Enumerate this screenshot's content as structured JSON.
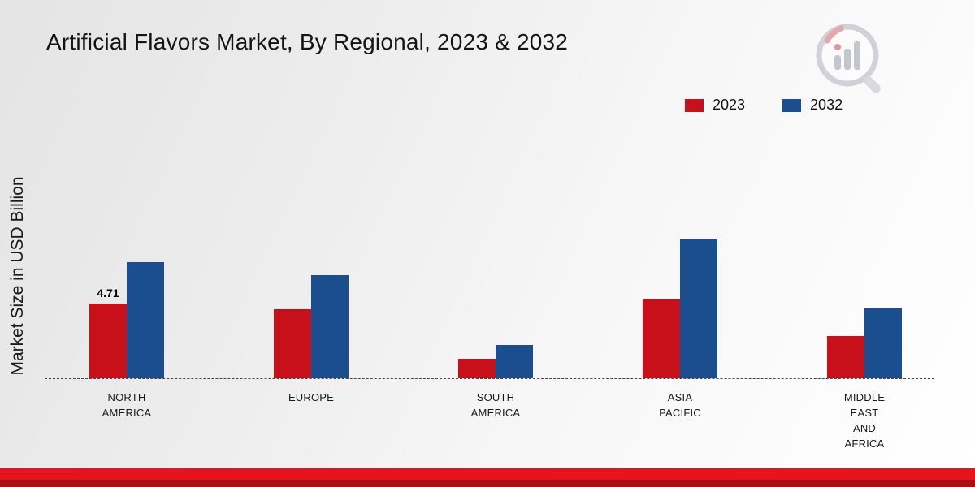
{
  "title": "Artificial Flavors Market, By Regional, 2023 & 2032",
  "ylabel": "Market Size in USD Billion",
  "legend": {
    "items": [
      {
        "label": "2023",
        "color": "#c8101a"
      },
      {
        "label": "2032",
        "color": "#1b4e8e"
      }
    ]
  },
  "chart_data": {
    "type": "bar",
    "title": "Artificial Flavors Market, By Regional, 2023 & 2032",
    "xlabel": "",
    "ylabel": "Market Size in USD Billion",
    "ylim": [
      0,
      10
    ],
    "grid": false,
    "legend_position": "top-right",
    "categories": [
      "NORTH AMERICA",
      "EUROPE",
      "SOUTH AMERICA",
      "ASIA PACIFIC",
      "MIDDLE EAST AND AFRICA"
    ],
    "series": [
      {
        "name": "2023",
        "color": "#c8101a",
        "values": [
          4.71,
          4.35,
          1.2,
          5.0,
          2.65
        ]
      },
      {
        "name": "2032",
        "color": "#1b4e8e",
        "values": [
          7.3,
          6.5,
          2.1,
          8.75,
          4.4
        ]
      }
    ],
    "annotations": [
      {
        "series_index": 0,
        "category_index": 0,
        "text": "4.71"
      }
    ]
  },
  "category_label_lines": [
    [
      "NORTH",
      "AMERICA"
    ],
    [
      "EUROPE"
    ],
    [
      "SOUTH",
      "AMERICA"
    ],
    [
      "ASIA",
      "PACIFIC"
    ],
    [
      "MIDDLE",
      "EAST",
      "AND",
      "AFRICA"
    ]
  ],
  "footer": {
    "band_top_color": "#e8121b",
    "band_bottom_color": "#a31015"
  },
  "logo_name": "market-research-future-logo"
}
